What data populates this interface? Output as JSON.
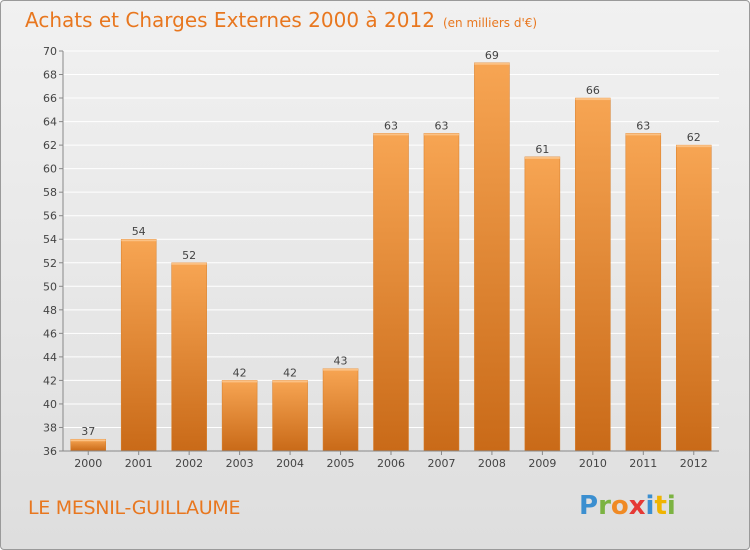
{
  "title": "Achats et Charges Externes 2000 à 2012",
  "subtitle": "(en milliers d'€)",
  "commune": "LE MESNIL-GUILLAUME",
  "logo_text": "Proxiti",
  "colors": {
    "title": "#e8771f",
    "bar_top": "#f7a553",
    "bar_bottom": "#c96a18",
    "grid": "#ffffff",
    "axis_text": "#444444"
  },
  "chart_data": {
    "type": "bar",
    "title": "Achats et Charges Externes 2000 à 2012",
    "subtitle": "(en milliers d'€)",
    "categories": [
      "2000",
      "2001",
      "2002",
      "2003",
      "2004",
      "2005",
      "2006",
      "2007",
      "2008",
      "2009",
      "2010",
      "2011",
      "2012"
    ],
    "values": [
      37,
      54,
      52,
      42,
      42,
      43,
      63,
      63,
      69,
      61,
      66,
      63,
      62
    ],
    "ylim": [
      36,
      70
    ],
    "yticks": [
      36,
      38,
      40,
      42,
      44,
      46,
      48,
      50,
      52,
      54,
      56,
      58,
      60,
      62,
      64,
      66,
      68,
      70
    ],
    "grid": true,
    "data_labels": true
  }
}
